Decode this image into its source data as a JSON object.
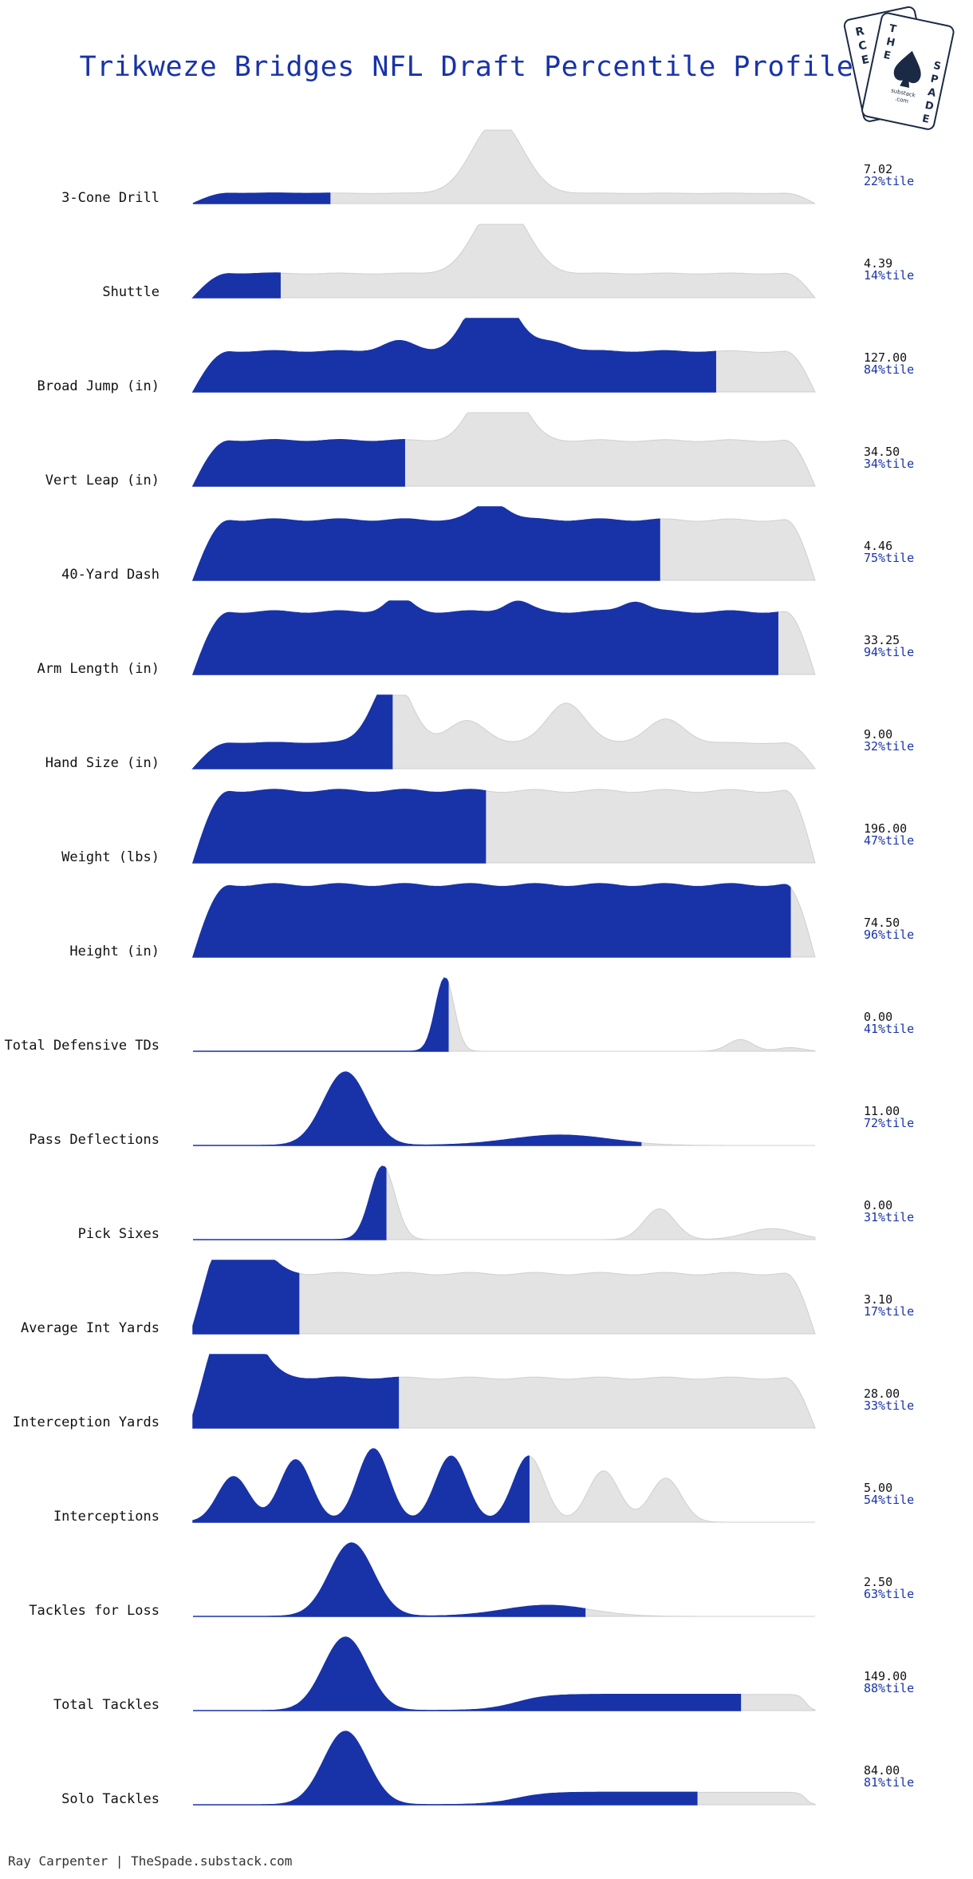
{
  "header": {
    "title": "Trikweze Bridges NFL Draft Percentile Profile"
  },
  "footer": {
    "credit": "Ray Carpenter | TheSpade.substack.com"
  },
  "logo": {
    "back_letters": [
      "R",
      "C",
      "E"
    ],
    "front_letters": [
      "T",
      "H",
      "E",
      "S",
      "P",
      "A",
      "D",
      "E"
    ],
    "sub": "substack",
    "dotcom": ".com"
  },
  "colors": {
    "fill": "#1833a8",
    "background_density": "#e3e3e3",
    "label": "#111111",
    "value": "#111111",
    "percentile": "#1833a8"
  },
  "chart_data": {
    "type": "area",
    "subtype": "ridgeline-density-percentile",
    "title": "Trikweze Bridges NFL Draft Percentile Profile",
    "metrics": [
      {
        "label": "3-Cone Drill",
        "value": "7.02",
        "percentile": "22%tile",
        "pct": 22,
        "peaks": [
          [
            0.49,
            1.0,
            0.04
          ]
        ],
        "base": 0.14
      },
      {
        "label": "Shuttle",
        "value": "4.39",
        "percentile": "14%tile",
        "pct": 14,
        "peaks": [
          [
            0.495,
            1.0,
            0.04
          ]
        ],
        "base": 0.33
      },
      {
        "label": "Broad Jump (in)",
        "value": "127.00",
        "percentile": "84%tile",
        "pct": 84,
        "peaks": [
          [
            0.48,
            0.95,
            0.035
          ],
          [
            0.33,
            0.14,
            0.025
          ],
          [
            0.58,
            0.12,
            0.025
          ]
        ],
        "base": 0.55
      },
      {
        "label": "Vert Leap (in)",
        "value": "34.50",
        "percentile": "34%tile",
        "pct": 34,
        "peaks": [
          [
            0.49,
            1.0,
            0.035
          ]
        ],
        "base": 0.62
      },
      {
        "label": "40-Yard Dash",
        "value": "4.46",
        "percentile": "75%tile",
        "pct": 75,
        "peaks": [
          [
            0.48,
            0.25,
            0.025
          ]
        ],
        "base": 0.82
      },
      {
        "label": "Arm Length (in)",
        "value": "33.25",
        "percentile": "94%tile",
        "pct": 94,
        "peaks": [
          [
            0.33,
            0.2,
            0.02
          ],
          [
            0.52,
            0.15,
            0.02
          ],
          [
            0.71,
            0.15,
            0.02
          ]
        ],
        "base": 0.85
      },
      {
        "label": "Hand Size (in)",
        "value": "9.00",
        "percentile": "32%tile",
        "pct": 32,
        "peaks": [
          [
            0.32,
            0.9,
            0.03
          ],
          [
            0.6,
            0.55,
            0.03
          ],
          [
            0.44,
            0.3,
            0.03
          ],
          [
            0.76,
            0.32,
            0.03
          ]
        ],
        "base": 0.35
      },
      {
        "label": "Weight (lbs)",
        "value": "196.00",
        "percentile": "47%tile",
        "pct": 47,
        "peaks": [],
        "base": 0.98
      },
      {
        "label": "Height (in)",
        "value": "74.50",
        "percentile": "96%tile",
        "pct": 96,
        "peaks": [],
        "base": 0.98
      },
      {
        "label": "Total Defensive TDs",
        "value": "0.00",
        "percentile": "41%tile",
        "pct": 41,
        "peaks": [
          [
            0.405,
            1.0,
            0.015
          ],
          [
            0.88,
            0.16,
            0.02
          ],
          [
            0.96,
            0.05,
            0.02
          ]
        ],
        "base": 0.0
      },
      {
        "label": "Pass Deflections",
        "value": "11.00",
        "percentile": "72%tile",
        "pct": 72,
        "peaks": [
          [
            0.245,
            1.0,
            0.035
          ],
          [
            0.59,
            0.14,
            0.08
          ]
        ],
        "base": 0.0
      },
      {
        "label": "Pick Sixes",
        "value": "0.00",
        "percentile": "31%tile",
        "pct": 31,
        "peaks": [
          [
            0.305,
            1.0,
            0.02
          ],
          [
            0.75,
            0.42,
            0.025
          ],
          [
            0.93,
            0.15,
            0.04
          ]
        ],
        "base": 0.0
      },
      {
        "label": "Average Int Yards",
        "value": "3.10",
        "percentile": "17%tile",
        "pct": 17,
        "peaks": [
          [
            0.07,
            0.8,
            0.035
          ]
        ],
        "base": 0.82
      },
      {
        "label": "Interception Yards",
        "value": "28.00",
        "percentile": "33%tile",
        "pct": 33,
        "peaks": [
          [
            0.065,
            1.0,
            0.035
          ]
        ],
        "base": 0.68
      },
      {
        "label": "Interceptions",
        "value": "5.00",
        "percentile": "54%tile",
        "pct": 54,
        "peaks": [
          [
            0.065,
            0.62,
            0.025
          ],
          [
            0.165,
            0.85,
            0.025
          ],
          [
            0.29,
            1.0,
            0.025
          ],
          [
            0.415,
            0.9,
            0.025
          ],
          [
            0.54,
            0.9,
            0.025
          ],
          [
            0.66,
            0.7,
            0.025
          ],
          [
            0.76,
            0.6,
            0.025
          ]
        ],
        "base": 0.0
      },
      {
        "label": "Tackles for Loss",
        "value": "2.50",
        "percentile": "63%tile",
        "pct": 63,
        "peaks": [
          [
            0.255,
            1.0,
            0.035
          ],
          [
            0.57,
            0.15,
            0.07
          ]
        ],
        "base": 0.0
      },
      {
        "label": "Total Tackles",
        "value": "149.00",
        "percentile": "88%tile",
        "pct": 88,
        "peaks": [
          [
            0.245,
            1.0,
            0.035
          ]
        ],
        "base": 0.0,
        "plateau": 0.22
      },
      {
        "label": "Solo Tackles",
        "value": "84.00",
        "percentile": "81%tile",
        "pct": 81,
        "peaks": [
          [
            0.245,
            1.0,
            0.035
          ]
        ],
        "base": 0.0,
        "plateau": 0.17
      }
    ]
  }
}
